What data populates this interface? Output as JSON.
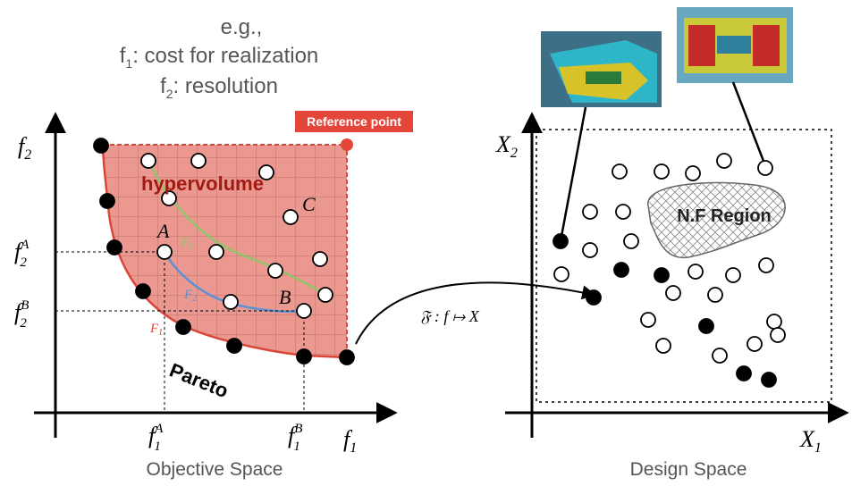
{
  "header": {
    "lines": [
      {
        "text": "e.g.,"
      },
      {
        "base": "f",
        "sub": "1",
        "text": ": cost for realization"
      },
      {
        "base": "f",
        "sub": "2",
        "text": ": resolution"
      }
    ]
  },
  "objective_space": {
    "title": "Objective Space",
    "reference_point": "Reference point",
    "hypervolume": "hypervolume",
    "pareto": "Pareto",
    "point_a": "A",
    "point_b": "B",
    "point_c": "C",
    "front_labels": [
      {
        "base": "F",
        "sub": "1"
      },
      {
        "base": "F",
        "sub": "2"
      },
      {
        "base": "F",
        "sub": "3"
      }
    ],
    "y_axis": {
      "base": "f",
      "sub": "2"
    },
    "x_axis": {
      "base": "f",
      "sub": "1"
    },
    "f2A": {
      "base": "f",
      "sub": "2",
      "sup": "A"
    },
    "f2B": {
      "base": "f",
      "sub": "2",
      "sup": "B"
    },
    "f1A": {
      "base": "f",
      "sub": "1",
      "sup": "A"
    },
    "f1B": {
      "base": "f",
      "sub": "1",
      "sup": "B"
    }
  },
  "mapping": "𝔉 : f ↦ X",
  "design_space": {
    "title": "Design Space",
    "region": "N.F Region",
    "y_axis": {
      "base": "X",
      "sub": "2"
    },
    "x_axis": {
      "base": "X",
      "sub": "1"
    }
  }
}
